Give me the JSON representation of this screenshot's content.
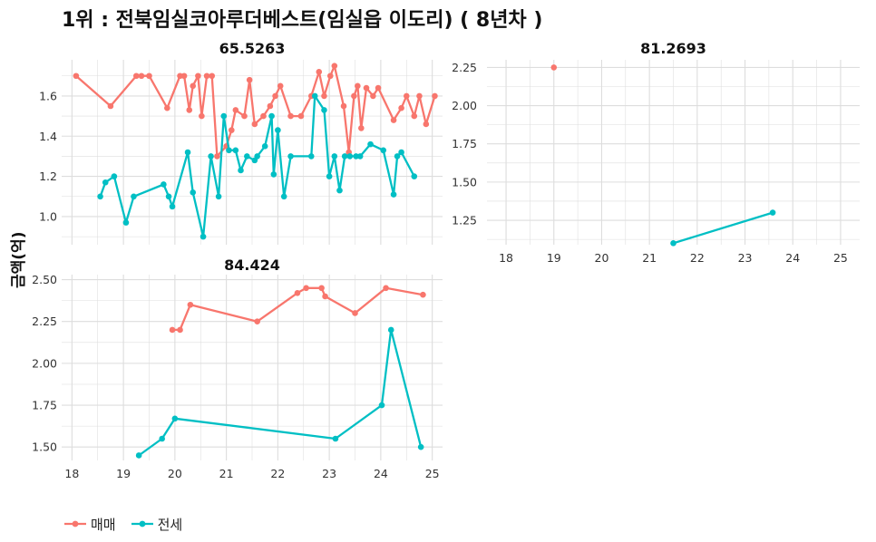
{
  "title": "1위 : 전북임실코아루더베스트(임실읍 이도리) ( 8년차 )",
  "ylabel": "금액(억)",
  "colors": {
    "maemae": "#F8766D",
    "jeonse": "#00BFC4",
    "grid": "#DDDDDD"
  },
  "legend": [
    {
      "label": "매매",
      "color": "#F8766D"
    },
    {
      "label": "전세",
      "color": "#00BFC4"
    }
  ],
  "chart_data": [
    {
      "type": "line",
      "title": "65.5263",
      "xlim": [
        17.8,
        25.2
      ],
      "ylim": [
        0.86,
        1.78
      ],
      "xticks": [],
      "yticks": [
        1.0,
        1.2,
        1.4,
        1.6
      ],
      "ytick_labels": [
        "1.0",
        "1.2",
        "1.4",
        "1.6"
      ],
      "series": [
        {
          "name": "매매",
          "color": "#F8766D",
          "x": [
            18.08,
            18.75,
            19.25,
            19.35,
            19.5,
            19.85,
            20.1,
            20.18,
            20.28,
            20.35,
            20.45,
            20.52,
            20.62,
            20.72,
            20.82,
            21.0,
            21.1,
            21.18,
            21.35,
            21.45,
            21.55,
            21.72,
            21.85,
            21.95,
            22.05,
            22.25,
            22.45,
            22.65,
            22.8,
            22.9,
            23.02,
            23.1,
            23.28,
            23.38,
            23.48,
            23.55,
            23.62,
            23.72,
            23.85,
            23.95,
            24.25,
            24.4,
            24.5,
            24.65,
            24.75,
            24.88,
            25.05
          ],
          "y": [
            1.7,
            1.55,
            1.7,
            1.7,
            1.7,
            1.54,
            1.7,
            1.7,
            1.53,
            1.65,
            1.7,
            1.5,
            1.7,
            1.7,
            1.3,
            1.35,
            1.43,
            1.53,
            1.5,
            1.68,
            1.46,
            1.5,
            1.55,
            1.6,
            1.65,
            1.5,
            1.5,
            1.6,
            1.72,
            1.6,
            1.7,
            1.75,
            1.55,
            1.32,
            1.6,
            1.65,
            1.44,
            1.64,
            1.6,
            1.64,
            1.48,
            1.54,
            1.6,
            1.5,
            1.6,
            1.46,
            1.6
          ]
        },
        {
          "name": "전세",
          "color": "#00BFC4",
          "x": [
            18.55,
            18.65,
            18.82,
            19.05,
            19.2,
            19.78,
            19.88,
            19.95,
            20.25,
            20.35,
            20.55,
            20.7,
            20.85,
            20.95,
            21.05,
            21.18,
            21.28,
            21.4,
            21.55,
            21.6,
            21.75,
            21.88,
            21.92,
            22.0,
            22.12,
            22.25,
            22.65,
            22.72,
            22.9,
            23.0,
            23.1,
            23.2,
            23.3,
            23.4,
            23.52,
            23.6,
            23.8,
            24.05,
            24.25,
            24.32,
            24.4,
            24.65
          ],
          "y": [
            1.1,
            1.17,
            1.2,
            0.97,
            1.1,
            1.16,
            1.1,
            1.05,
            1.32,
            1.12,
            0.9,
            1.3,
            1.1,
            1.5,
            1.33,
            1.33,
            1.23,
            1.3,
            1.28,
            1.3,
            1.35,
            1.5,
            1.21,
            1.43,
            1.1,
            1.3,
            1.3,
            1.6,
            1.53,
            1.2,
            1.3,
            1.13,
            1.3,
            1.3,
            1.3,
            1.3,
            1.36,
            1.33,
            1.11,
            1.3,
            1.32,
            1.2
          ]
        }
      ]
    },
    {
      "type": "line",
      "title": "81.2693",
      "xlim": [
        17.6,
        25.4
      ],
      "ylim": [
        1.09,
        2.3
      ],
      "xticks": [
        18,
        19,
        20,
        21,
        22,
        23,
        24,
        25
      ],
      "yticks": [
        1.25,
        1.5,
        1.75,
        2.0,
        2.25
      ],
      "ytick_labels": [
        "1.25",
        "1.50",
        "1.75",
        "2.00",
        "2.25"
      ],
      "series": [
        {
          "name": "매매",
          "color": "#F8766D",
          "x": [
            19.0
          ],
          "y": [
            2.25
          ]
        },
        {
          "name": "전세",
          "color": "#00BFC4",
          "x": [
            21.5,
            23.58
          ],
          "y": [
            1.1,
            1.3
          ]
        }
      ]
    },
    {
      "type": "line",
      "title": "84.424",
      "xlim": [
        17.8,
        25.2
      ],
      "ylim": [
        1.42,
        2.53
      ],
      "xticks": [
        18,
        19,
        20,
        21,
        22,
        23,
        24,
        25
      ],
      "yticks": [
        1.5,
        1.75,
        2.0,
        2.25,
        2.5
      ],
      "ytick_labels": [
        "1.50",
        "1.75",
        "2.00",
        "2.25",
        "2.50"
      ],
      "series": [
        {
          "name": "매매",
          "color": "#F8766D",
          "x": [
            19.95,
            20.1,
            20.3,
            21.6,
            22.38,
            22.55,
            22.85,
            22.92,
            23.5,
            24.1,
            24.82
          ],
          "y": [
            2.2,
            2.2,
            2.35,
            2.25,
            2.42,
            2.45,
            2.45,
            2.4,
            2.3,
            2.45,
            2.41
          ]
        },
        {
          "name": "전세",
          "color": "#00BFC4",
          "x": [
            19.3,
            19.75,
            20.0,
            23.12,
            24.02,
            24.2,
            24.78
          ],
          "y": [
            1.45,
            1.55,
            1.67,
            1.55,
            1.75,
            2.2,
            1.5
          ]
        }
      ]
    }
  ]
}
